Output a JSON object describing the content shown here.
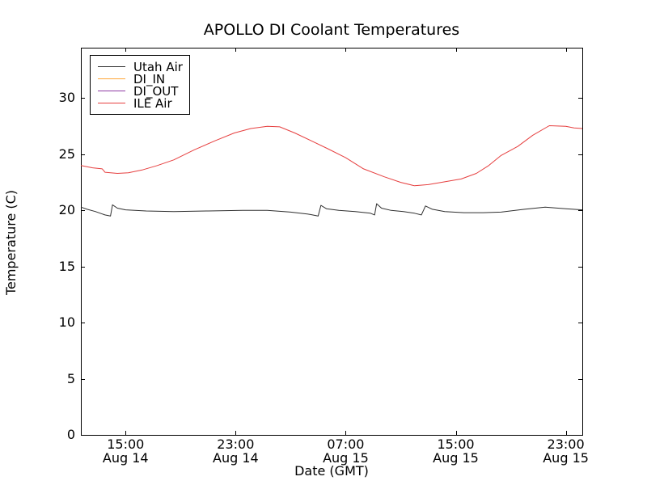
{
  "chart_data": {
    "type": "line",
    "title": "APOLLO DI Coolant Temperatures",
    "xlabel": "Date (GMT)",
    "ylabel": "Temperature (C)",
    "grid": false,
    "legend_position": "upper-left",
    "x_encoding": "hours since Aug 14 00:00 GMT (inferred from tick labels)",
    "xlim": [
      11.75,
      48.2
    ],
    "ylim": [
      0,
      34.5
    ],
    "yticks": [
      0,
      5,
      10,
      15,
      20,
      25,
      30
    ],
    "xticks": [
      {
        "value": 15,
        "time": "15:00",
        "date": "Aug 14"
      },
      {
        "value": 23,
        "time": "23:00",
        "date": "Aug 14"
      },
      {
        "value": 31,
        "time": "07:00",
        "date": "Aug 15"
      },
      {
        "value": 39,
        "time": "15:00",
        "date": "Aug 15"
      },
      {
        "value": 47,
        "time": "23:00",
        "date": "Aug 15"
      }
    ],
    "frame_color": "#000000",
    "series": [
      {
        "name": "Utah Air",
        "color": "#2e2e2e",
        "visible_on_plot": true,
        "points": [
          [
            11.75,
            20.3
          ],
          [
            12.2,
            20.1
          ],
          [
            12.8,
            19.9
          ],
          [
            13.5,
            19.6
          ],
          [
            13.9,
            19.5
          ],
          [
            14.05,
            20.5
          ],
          [
            14.4,
            20.2
          ],
          [
            15.0,
            20.05
          ],
          [
            16.5,
            19.95
          ],
          [
            18.5,
            19.9
          ],
          [
            21.0,
            19.95
          ],
          [
            23.5,
            20.0
          ],
          [
            25.3,
            20.0
          ],
          [
            27.0,
            19.85
          ],
          [
            28.4,
            19.65
          ],
          [
            29.0,
            19.5
          ],
          [
            29.2,
            20.45
          ],
          [
            29.6,
            20.15
          ],
          [
            30.5,
            20.0
          ],
          [
            31.7,
            19.9
          ],
          [
            32.8,
            19.75
          ],
          [
            33.1,
            19.6
          ],
          [
            33.25,
            20.6
          ],
          [
            33.6,
            20.2
          ],
          [
            34.3,
            20.0
          ],
          [
            35.2,
            19.9
          ],
          [
            36.0,
            19.75
          ],
          [
            36.5,
            19.6
          ],
          [
            36.8,
            20.4
          ],
          [
            37.3,
            20.1
          ],
          [
            38.2,
            19.9
          ],
          [
            39.6,
            19.8
          ],
          [
            41.0,
            19.8
          ],
          [
            42.3,
            19.85
          ],
          [
            44.0,
            20.1
          ],
          [
            45.5,
            20.3
          ],
          [
            47.0,
            20.15
          ],
          [
            48.2,
            20.05
          ]
        ]
      },
      {
        "name": "DI_IN",
        "color": "#ffa636",
        "visible_on_plot": false,
        "points": []
      },
      {
        "name": "DI_OUT",
        "color": "#8e3ba3",
        "visible_on_plot": false,
        "points": []
      },
      {
        "name": "ILE Air",
        "color": "#e63f3f",
        "visible_on_plot": true,
        "points": [
          [
            11.75,
            24.0
          ],
          [
            12.6,
            23.8
          ],
          [
            13.3,
            23.7
          ],
          [
            13.5,
            23.4
          ],
          [
            14.4,
            23.3
          ],
          [
            15.2,
            23.35
          ],
          [
            16.2,
            23.6
          ],
          [
            17.3,
            24.0
          ],
          [
            18.5,
            24.5
          ],
          [
            20.0,
            25.4
          ],
          [
            21.5,
            26.2
          ],
          [
            22.9,
            26.9
          ],
          [
            24.1,
            27.3
          ],
          [
            25.3,
            27.5
          ],
          [
            26.2,
            27.45
          ],
          [
            27.3,
            26.9
          ],
          [
            28.5,
            26.2
          ],
          [
            29.7,
            25.5
          ],
          [
            31.0,
            24.7
          ],
          [
            32.3,
            23.7
          ],
          [
            33.8,
            23.0
          ],
          [
            35.0,
            22.5
          ],
          [
            36.0,
            22.2
          ],
          [
            37.0,
            22.3
          ],
          [
            38.2,
            22.55
          ],
          [
            39.4,
            22.8
          ],
          [
            40.5,
            23.3
          ],
          [
            41.4,
            24.0
          ],
          [
            42.3,
            24.9
          ],
          [
            43.5,
            25.7
          ],
          [
            44.6,
            26.7
          ],
          [
            45.8,
            27.55
          ],
          [
            47.0,
            27.5
          ],
          [
            47.6,
            27.35
          ],
          [
            48.2,
            27.3
          ]
        ]
      }
    ]
  }
}
